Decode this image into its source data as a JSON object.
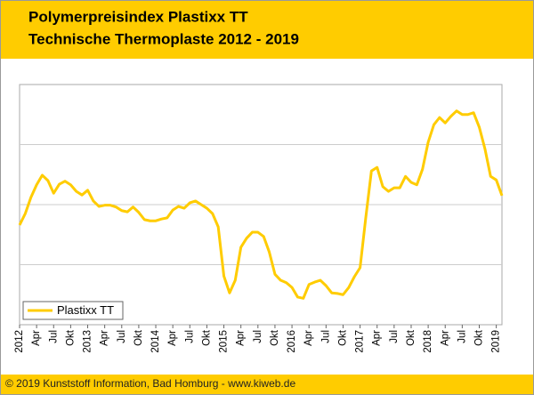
{
  "chart_data": {
    "type": "line",
    "title": "Polymerpreisindex Plastixx TT",
    "subtitle": "Technische Thermoplaste 2012 - 2019",
    "footer": "© 2019 Kunststoff Information, Bad Homburg - www.kiweb.de",
    "categories": [
      "2012",
      null,
      null,
      "Apr",
      null,
      null,
      "Jul",
      null,
      null,
      "Okt",
      null,
      null,
      "2013",
      null,
      null,
      "Apr",
      null,
      null,
      "Jul",
      null,
      null,
      "Okt",
      null,
      null,
      "2014",
      null,
      null,
      "Apr",
      null,
      null,
      "Jul",
      null,
      null,
      "Okt",
      null,
      null,
      "2015",
      null,
      null,
      "Apr",
      null,
      null,
      "Jul",
      null,
      null,
      "Okt",
      null,
      null,
      "2016",
      null,
      null,
      "Apr",
      null,
      null,
      "Jul",
      null,
      null,
      "Okt",
      null,
      null,
      "2017",
      null,
      null,
      "Apr",
      null,
      null,
      "Jul",
      null,
      null,
      "Okt",
      null,
      null,
      "2018",
      null,
      null,
      "Apr",
      null,
      null,
      "Jul",
      null,
      null,
      "Okt",
      null,
      null,
      "2019",
      null
    ],
    "series": [
      {
        "name": "Plastixx TT",
        "color": "#ffcc00",
        "values": [
          1.66,
          1.85,
          2.12,
          2.33,
          2.49,
          2.4,
          2.19,
          2.34,
          2.39,
          2.33,
          2.22,
          2.16,
          2.24,
          2.06,
          1.97,
          1.99,
          1.99,
          1.96,
          1.9,
          1.88,
          1.96,
          1.87,
          1.75,
          1.73,
          1.73,
          1.76,
          1.78,
          1.91,
          1.97,
          1.94,
          2.03,
          2.06,
          2.0,
          1.94,
          1.85,
          1.63,
          0.81,
          0.53,
          0.74,
          1.29,
          1.44,
          1.54,
          1.54,
          1.47,
          1.21,
          0.84,
          0.74,
          0.7,
          0.62,
          0.46,
          0.44,
          0.67,
          0.71,
          0.74,
          0.65,
          0.53,
          0.52,
          0.5,
          0.62,
          0.8,
          0.95,
          1.78,
          2.56,
          2.62,
          2.3,
          2.22,
          2.28,
          2.28,
          2.47,
          2.37,
          2.33,
          2.59,
          3.04,
          3.33,
          3.45,
          3.36,
          3.47,
          3.56,
          3.5,
          3.5,
          3.53,
          3.29,
          2.93,
          2.47,
          2.41,
          2.15
        ]
      }
    ],
    "ylim": [
      0,
      4
    ],
    "ygrid": [
      1,
      2,
      3
    ],
    "legend": "lower left"
  }
}
